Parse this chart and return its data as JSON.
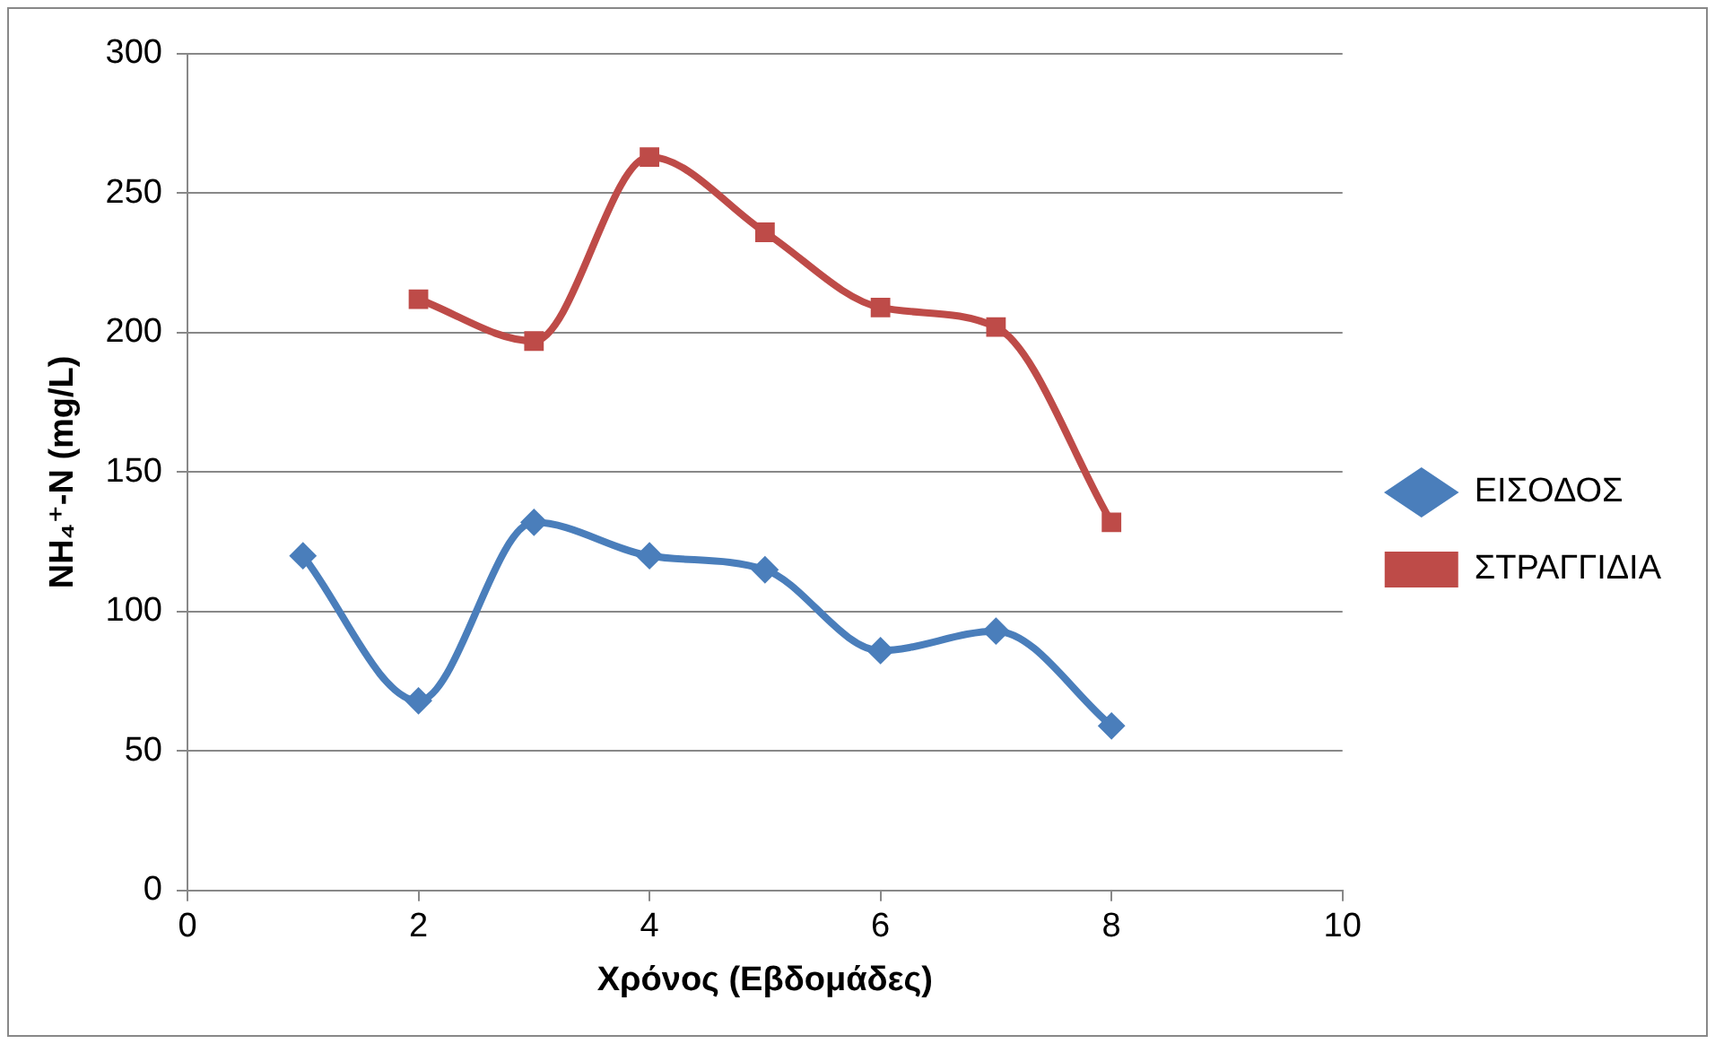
{
  "chart_data": {
    "type": "line",
    "xlabel": "Χρόνος (Εβδομάδες)",
    "ylabel": "NH₄⁺-N (mg/L)",
    "xlim": [
      0,
      10
    ],
    "xticks": [
      0,
      2,
      4,
      6,
      8,
      10
    ],
    "ylim": [
      0,
      300
    ],
    "yticks": [
      0,
      50,
      100,
      150,
      200,
      250,
      300
    ],
    "grid": "y",
    "legend": "right",
    "series": [
      {
        "name": "ΕΙΣΟΔΟΣ",
        "color": "#4a7ebb",
        "marker": "diamond",
        "x": [
          1,
          2,
          3,
          4,
          5,
          6,
          7,
          8
        ],
        "values": [
          120,
          68,
          132,
          120,
          115,
          86,
          93,
          59
        ]
      },
      {
        "name": "ΣΤΡΑΓΓΙΔΙΑ",
        "color": "#be4b48",
        "marker": "square",
        "x": [
          2,
          3,
          4,
          5,
          6,
          7,
          8
        ],
        "values": [
          212,
          197,
          263,
          236,
          209,
          202,
          132
        ]
      }
    ]
  }
}
